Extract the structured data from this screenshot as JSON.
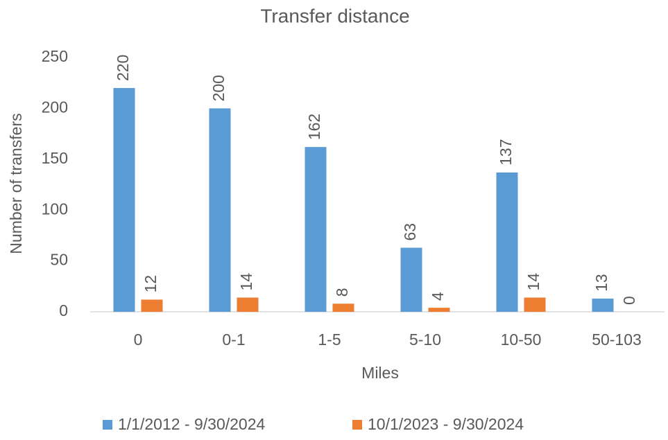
{
  "chart_data": {
    "type": "bar",
    "title": "Transfer distance",
    "x_label": "Miles",
    "y_label": "Number of transfers",
    "categories": [
      "0",
      "0-1",
      "1-5",
      "5-10",
      "10-50",
      "50-103"
    ],
    "series": [
      {
        "name": "1/1/2012 - 9/30/2024",
        "color": "#5b9bd5",
        "values": [
          220,
          200,
          162,
          63,
          137,
          13
        ]
      },
      {
        "name": "10/1/2023 - 9/30/2024",
        "color": "#ed7d31",
        "values": [
          12,
          14,
          8,
          4,
          14,
          0
        ]
      }
    ],
    "ylim": [
      0,
      250
    ],
    "yticks": [
      0,
      50,
      100,
      150,
      200,
      250
    ],
    "grid": false,
    "legend": "bottom"
  }
}
